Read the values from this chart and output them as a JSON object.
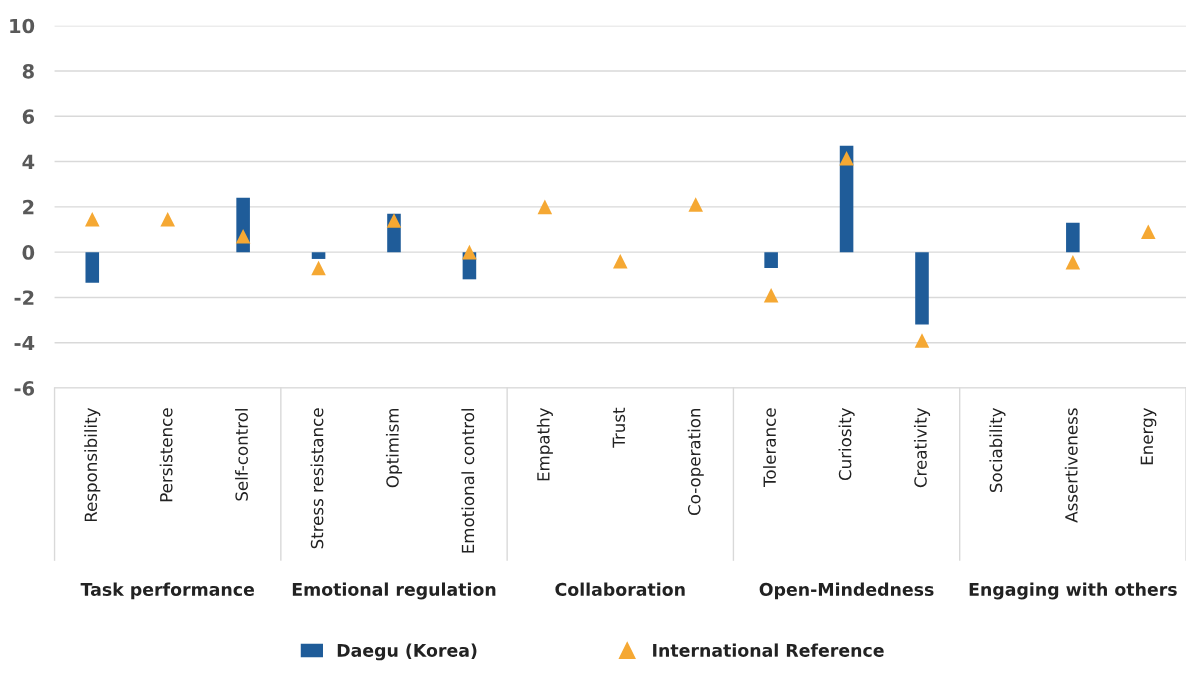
{
  "chart_data": {
    "type": "bar",
    "categories": [
      "Responsibility",
      "Persistence",
      "Self-control",
      "Stress resistance",
      "Optimism",
      "Emotional control",
      "Empathy",
      "Trust",
      "Co-operation",
      "Tolerance",
      "Curiosity",
      "Creativity",
      "Sociability",
      "Assertiveness",
      "Energy"
    ],
    "series": [
      {
        "name": "Daegu (Korea)",
        "color": "#1f5c99",
        "values": [
          -1.35,
          null,
          2.4,
          -0.3,
          1.7,
          -1.2,
          null,
          null,
          null,
          -0.7,
          4.7,
          -3.2,
          null,
          1.3,
          null
        ]
      },
      {
        "name": "International Reference",
        "type": "scatter",
        "color": "#f5a833",
        "marker": "triangle",
        "values": [
          1.45,
          1.45,
          0.7,
          -0.7,
          1.4,
          0.0,
          2.0,
          -0.4,
          2.1,
          -1.9,
          4.15,
          -3.9,
          null,
          -0.45,
          0.9
        ]
      }
    ],
    "annotations": [
      "Task performance",
      "Emotional regulation",
      "Collaboration",
      "Open-Mindedness",
      "Engaging with others"
    ],
    "ylim": [
      -6,
      10
    ],
    "yticks": [
      -6,
      -4,
      -2,
      0,
      2,
      4,
      6,
      8,
      10
    ],
    "grid": "y",
    "legend": "bottom"
  }
}
